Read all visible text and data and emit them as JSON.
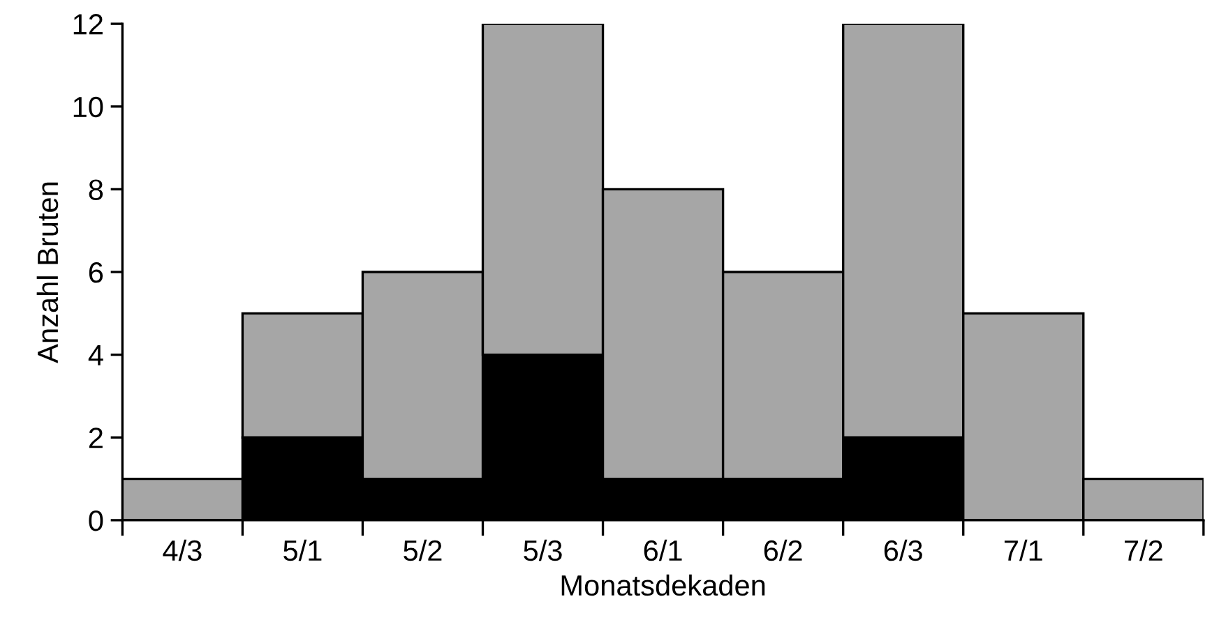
{
  "chart_data": {
    "type": "bar",
    "stacked": true,
    "xlabel": "Monatsdekaden",
    "ylabel": "Anzahl Bruten",
    "categories": [
      "4/3",
      "5/1",
      "5/2",
      "5/3",
      "6/1",
      "6/2",
      "6/3",
      "7/1",
      "7/2"
    ],
    "series": [
      {
        "color": "#000000",
        "values": [
          0,
          2,
          1,
          4,
          1,
          1,
          2,
          0,
          0
        ]
      },
      {
        "color": "#a6a6a6",
        "values": [
          1,
          3,
          5,
          8,
          7,
          5,
          10,
          5,
          1
        ]
      }
    ],
    "ylim": [
      0,
      12
    ],
    "yticks": [
      0,
      2,
      4,
      6,
      8,
      10,
      12
    ],
    "grid": false,
    "legend": false
  }
}
